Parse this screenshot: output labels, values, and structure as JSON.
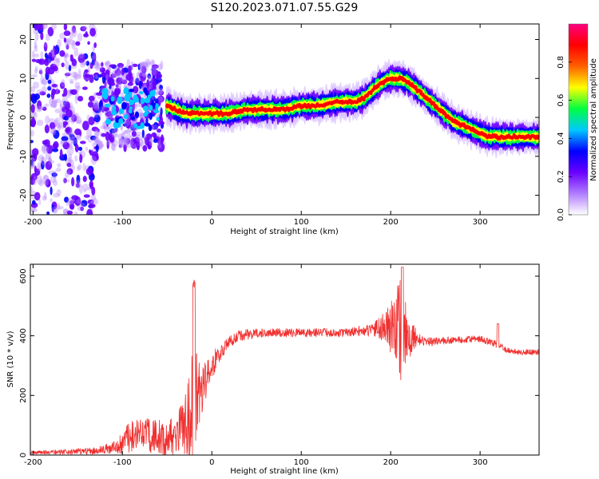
{
  "page_title": "S120.2023.071.07.55.G29",
  "chart_data": [
    {
      "type": "heatmap",
      "title": "",
      "xlabel": "Height of straight line (km)",
      "ylabel": "Frequency (Hz)",
      "xlim": [
        -203,
        366
      ],
      "ylim": [
        -25,
        24
      ],
      "xticks": [
        -200,
        -100,
        0,
        100,
        200,
        300
      ],
      "yticks": [
        -20,
        -10,
        0,
        10,
        20
      ],
      "grid": false,
      "colorbar": {
        "label": "Normalized spectral amplitude",
        "range": [
          0,
          1
        ],
        "ticks": [
          "0.0",
          "0.2",
          "0.4",
          "0.6",
          "0.8"
        ],
        "colors": [
          "#ffffff",
          "#b07cff",
          "#6a00ff",
          "#0000ff",
          "#00c8ff",
          "#00ff40",
          "#ffff00",
          "#ff6000",
          "#ff0000",
          "#ff0080"
        ]
      },
      "ridge": {
        "x": [
          -50,
          -40,
          -30,
          -20,
          0,
          20,
          40,
          60,
          80,
          100,
          120,
          140,
          160,
          170,
          180,
          190,
          200,
          210,
          220,
          230,
          240,
          250,
          260,
          270,
          280,
          290,
          300,
          310,
          320,
          330,
          340,
          350,
          366
        ],
        "y": [
          3,
          2,
          1,
          1,
          1,
          1,
          2,
          2,
          2,
          3,
          3,
          4,
          4,
          5,
          7,
          9,
          10,
          10,
          9,
          7,
          5,
          3,
          1,
          -1,
          -2,
          -3,
          -4,
          -5,
          -5,
          -5,
          -5,
          -5,
          -5
        ]
      },
      "scatter_region": {
        "x_from": -203,
        "x_to": -55,
        "y_from": -25,
        "y_to": 24
      }
    },
    {
      "type": "line",
      "title": "",
      "xlabel": "Height of straight line (km)",
      "ylabel": "SNR (10 * v/v)",
      "xlim": [
        -203,
        366
      ],
      "ylim": [
        0,
        640
      ],
      "xticks": [
        -200,
        -100,
        0,
        100,
        200,
        300
      ],
      "yticks": [
        0,
        200,
        400,
        600
      ],
      "grid": false,
      "series": [
        {
          "color": "#f03030",
          "envelope": {
            "x": [
              -203,
              -180,
              -150,
              -130,
              -110,
              -100,
              -90,
              -80,
              -70,
              -60,
              -50,
              -40,
              -30,
              -25,
              -20,
              -15,
              -10,
              -5,
              0,
              10,
              20,
              30,
              40,
              60,
              100,
              150,
              180,
              195,
              205,
              210,
              215,
              220,
              230,
              240,
              270,
              300,
              320,
              330,
              350,
              366
            ],
            "base": [
              8,
              10,
              12,
              15,
              25,
              40,
              70,
              80,
              65,
              60,
              55,
              70,
              100,
              130,
              160,
              200,
              230,
              260,
              300,
              345,
              380,
              400,
              405,
              410,
              410,
              410,
              420,
              430,
              420,
              420,
              420,
              420,
              390,
              380,
              385,
              390,
              370,
              350,
              345,
              345
            ],
            "amp": [
              6,
              8,
              10,
              12,
              20,
              40,
              60,
              60,
              55,
              60,
              60,
              70,
              100,
              200,
              250,
              120,
              80,
              60,
              50,
              25,
              20,
              18,
              18,
              15,
              15,
              15,
              20,
              60,
              130,
              190,
              140,
              100,
              20,
              15,
              12,
              12,
              12,
              10,
              10,
              10
            ]
          }
        }
      ]
    }
  ]
}
